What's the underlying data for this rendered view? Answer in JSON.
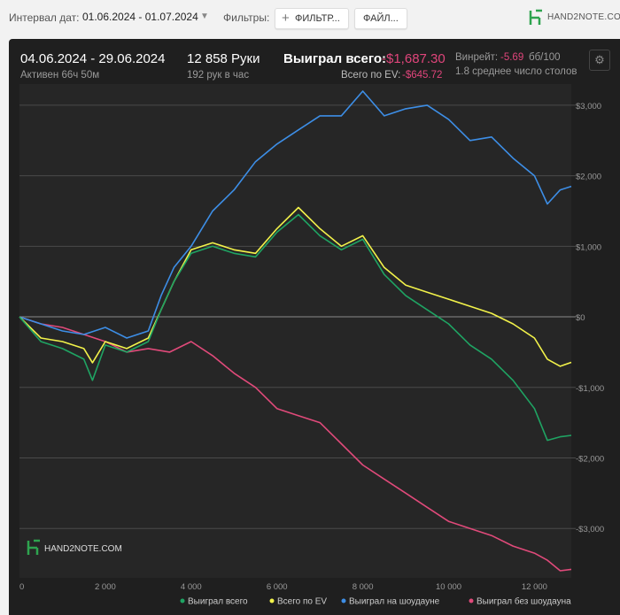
{
  "filters_bar": {
    "date_range_label": "Интервал дат:",
    "date_range_value": "01.06.2024 - 01.07.2024",
    "filters_label": "Фильтры:",
    "filters_button": "ФИЛЬТР...",
    "files_button": "ФАЙЛ...",
    "brand": "HAND2NOTE.COM"
  },
  "summary": {
    "period": "04.06.2024 - 29.06.2024",
    "active": "Активен 66ч 50м",
    "hands": "12 858 Руки",
    "hands_per_hour": "192 рук в час",
    "won_label": "Выиграл всего:",
    "won_value": "-$1,687.30",
    "ev_label": "Всего по EV:",
    "ev_value": "-$645.72",
    "winrate_label": "Винрейт:",
    "winrate_value": "-5.69",
    "winrate_unit": "бб/100",
    "avg_tables": "1.8 среднее число столов",
    "watermark": "HAND2NOTE.COM"
  },
  "colors": {
    "won": "#1fa463",
    "ev": "#f2f24a",
    "showdown": "#3d8ee6",
    "non_showdown": "#e04a7a",
    "negative": "#e0457b"
  },
  "chart_data": {
    "type": "line",
    "xlim": [
      0,
      12858
    ],
    "ylim": [
      -3700,
      3300
    ],
    "x_ticks": [
      0,
      2000,
      4000,
      6000,
      8000,
      10000,
      12000
    ],
    "x_tick_labels": [
      "0",
      "2 000",
      "4 000",
      "6 000",
      "8 000",
      "10 000",
      "12 000"
    ],
    "y_ticks": [
      3000,
      2000,
      1000,
      0,
      -1000,
      -2000,
      -3000
    ],
    "y_tick_labels": [
      "$3,000",
      "$2,000",
      "$1,000",
      "$0",
      "-$1,000",
      "-$2,000",
      "-$3,000"
    ],
    "grid": true,
    "legend_position": "bottom",
    "series": [
      {
        "name": "Выиграл всего",
        "color": "#1fa463",
        "x": [
          0,
          500,
          1000,
          1500,
          1700,
          2000,
          2500,
          3000,
          3300,
          3600,
          4000,
          4500,
          5000,
          5500,
          6000,
          6500,
          7000,
          7500,
          8000,
          8500,
          9000,
          9500,
          10000,
          10500,
          11000,
          11500,
          12000,
          12300,
          12600,
          12858
        ],
        "y": [
          0,
          -350,
          -450,
          -600,
          -900,
          -400,
          -500,
          -350,
          100,
          500,
          900,
          1000,
          900,
          850,
          1200,
          1450,
          1150,
          950,
          1100,
          600,
          300,
          100,
          -100,
          -400,
          -600,
          -900,
          -1300,
          -1750,
          -1700,
          -1680
        ]
      },
      {
        "name": "Всего по EV",
        "color": "#f2f24a",
        "x": [
          0,
          500,
          1000,
          1500,
          1700,
          2000,
          2500,
          3000,
          3300,
          3600,
          4000,
          4500,
          5000,
          5500,
          6000,
          6500,
          7000,
          7500,
          8000,
          8500,
          9000,
          9500,
          10000,
          10500,
          11000,
          11500,
          12000,
          12300,
          12600,
          12858
        ],
        "y": [
          0,
          -300,
          -350,
          -450,
          -650,
          -350,
          -450,
          -300,
          100,
          500,
          950,
          1050,
          950,
          900,
          1250,
          1550,
          1250,
          1000,
          1150,
          700,
          450,
          350,
          250,
          150,
          50,
          -100,
          -300,
          -600,
          -700,
          -645
        ]
      },
      {
        "name": "Выиграл на шоудауне",
        "color": "#3d8ee6",
        "x": [
          0,
          500,
          1000,
          1500,
          2000,
          2500,
          3000,
          3300,
          3600,
          4000,
          4500,
          5000,
          5500,
          6000,
          6500,
          7000,
          7500,
          8000,
          8500,
          9000,
          9500,
          10000,
          10500,
          11000,
          11500,
          12000,
          12300,
          12600,
          12858
        ],
        "y": [
          0,
          -100,
          -200,
          -250,
          -150,
          -300,
          -200,
          300,
          700,
          1000,
          1500,
          1800,
          2200,
          2450,
          2650,
          2850,
          2850,
          3200,
          2850,
          2950,
          3000,
          2800,
          2500,
          2550,
          2250,
          2000,
          1600,
          1800,
          1850
        ]
      },
      {
        "name": "Выиграл без шоудауна",
        "color": "#e04a7a",
        "x": [
          0,
          500,
          1000,
          1500,
          2000,
          2500,
          3000,
          3500,
          4000,
          4500,
          5000,
          5500,
          6000,
          6500,
          7000,
          7500,
          8000,
          8500,
          9000,
          9500,
          10000,
          10500,
          11000,
          11500,
          12000,
          12300,
          12600,
          12858
        ],
        "y": [
          0,
          -100,
          -150,
          -250,
          -350,
          -500,
          -450,
          -500,
          -350,
          -550,
          -800,
          -1000,
          -1300,
          -1400,
          -1500,
          -1800,
          -2100,
          -2300,
          -2500,
          -2700,
          -2900,
          -3000,
          -3100,
          -3250,
          -3350,
          -3450,
          -3600,
          -3580
        ]
      }
    ]
  }
}
